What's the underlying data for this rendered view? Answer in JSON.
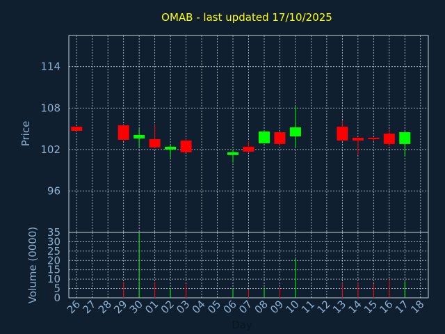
{
  "chart_data": {
    "type": "candlestick",
    "title": "OMAB - last updated 17/10/2025",
    "xlabel": "Day",
    "price_panel": {
      "ylabel": "Price",
      "yticks": [
        96,
        102,
        108,
        114
      ],
      "ylim": [
        90,
        118.5
      ]
    },
    "volume_panel": {
      "ylabel": "Volume (0000)",
      "yticks": [
        0,
        5,
        10,
        15,
        20,
        25,
        30,
        35
      ],
      "ylim": [
        0,
        35
      ]
    },
    "x_labels": [
      "26",
      "27",
      "28",
      "29",
      "30",
      "01",
      "02",
      "03",
      "04",
      "05",
      "06",
      "07",
      "08",
      "09",
      "10",
      "11",
      "12",
      "13",
      "14",
      "15",
      "16",
      "17",
      "18"
    ],
    "colors": {
      "up": "#00ff00",
      "down": "#ff0000",
      "title": "#ffff00",
      "text": "#8fb0d0",
      "background": "#0f1f30"
    },
    "candles": [
      {
        "day": "26",
        "open": 105.3,
        "high": 105.3,
        "low": 104.7,
        "close": 104.7
      },
      {
        "day": "29",
        "open": 105.5,
        "high": 105.5,
        "low": 103.2,
        "close": 103.4
      },
      {
        "day": "30",
        "open": 103.6,
        "high": 105.0,
        "low": 102.3,
        "close": 104.1
      },
      {
        "day": "01",
        "open": 103.5,
        "high": 105.5,
        "low": 102.2,
        "close": 102.3
      },
      {
        "day": "02",
        "open": 102.0,
        "high": 102.6,
        "low": 100.8,
        "close": 102.4
      },
      {
        "day": "03",
        "open": 103.3,
        "high": 103.5,
        "low": 101.6,
        "close": 101.6
      },
      {
        "day": "06",
        "open": 101.2,
        "high": 102.0,
        "low": 100.1,
        "close": 101.6
      },
      {
        "day": "07",
        "open": 102.4,
        "high": 103.2,
        "low": 101.5,
        "close": 101.7
      },
      {
        "day": "08",
        "open": 102.9,
        "high": 104.8,
        "low": 102.9,
        "close": 104.6
      },
      {
        "day": "09",
        "open": 104.5,
        "high": 104.5,
        "low": 102.7,
        "close": 102.8
      },
      {
        "day": "10",
        "open": 103.9,
        "high": 108.3,
        "low": 102.3,
        "close": 105.2
      },
      {
        "day": "13",
        "open": 105.3,
        "high": 106.2,
        "low": 103.3,
        "close": 103.3
      },
      {
        "day": "14",
        "open": 103.7,
        "high": 103.7,
        "low": 101.2,
        "close": 103.3
      },
      {
        "day": "15",
        "open": 103.7,
        "high": 103.7,
        "low": 103.2,
        "close": 103.5
      },
      {
        "day": "16",
        "open": 104.3,
        "high": 104.9,
        "low": 102.5,
        "close": 102.8
      },
      {
        "day": "17",
        "open": 102.8,
        "high": 104.6,
        "low": 101.0,
        "close": 104.5
      }
    ],
    "volume": [
      {
        "day": "29",
        "value": 8.5,
        "direction": "down"
      },
      {
        "day": "30",
        "value": 35,
        "direction": "up"
      },
      {
        "day": "01",
        "value": 8.5,
        "direction": "down"
      },
      {
        "day": "02",
        "value": 5,
        "direction": "up"
      },
      {
        "day": "03",
        "value": 7,
        "direction": "down"
      },
      {
        "day": "06",
        "value": 5,
        "direction": "up"
      },
      {
        "day": "07",
        "value": 4.5,
        "direction": "down"
      },
      {
        "day": "08",
        "value": 5.5,
        "direction": "up"
      },
      {
        "day": "09",
        "value": 5.5,
        "direction": "down"
      },
      {
        "day": "10",
        "value": 21,
        "direction": "up"
      },
      {
        "day": "13",
        "value": 8,
        "direction": "down"
      },
      {
        "day": "14",
        "value": 8,
        "direction": "down"
      },
      {
        "day": "15",
        "value": 7.5,
        "direction": "down"
      },
      {
        "day": "16",
        "value": 10,
        "direction": "down"
      },
      {
        "day": "17",
        "value": 9,
        "direction": "up"
      }
    ]
  }
}
